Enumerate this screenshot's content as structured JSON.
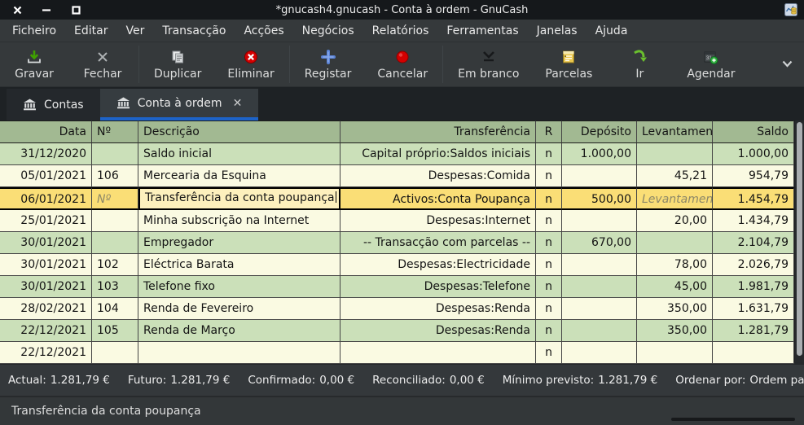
{
  "window": {
    "title": "*gnucash4.gnucash - Conta à ordem - GnuCash",
    "controls": [
      "close",
      "minimize",
      "maximize"
    ]
  },
  "menu": {
    "items": [
      "Ficheiro",
      "Editar",
      "Ver",
      "Transacção",
      "Acções",
      "Negócios",
      "Relatórios",
      "Ferramentas",
      "Janelas",
      "Ajuda"
    ]
  },
  "toolbar": {
    "groups": [
      [
        {
          "label": "Gravar",
          "icon": "save-icon"
        },
        {
          "label": "Fechar",
          "icon": "close-icon"
        }
      ],
      [
        {
          "label": "Duplicar",
          "icon": "duplicate-icon"
        },
        {
          "label": "Eliminar",
          "icon": "delete-icon"
        }
      ],
      [
        {
          "label": "Registar",
          "icon": "add-icon"
        },
        {
          "label": "Cancelar",
          "icon": "cancel-icon"
        }
      ],
      [
        {
          "label": "Em branco",
          "icon": "blank-down-icon"
        },
        {
          "label": "Parcelas",
          "icon": "splits-icon"
        },
        {
          "label": "Ir",
          "icon": "jump-icon"
        },
        {
          "label": "Agendar",
          "icon": "schedule-icon"
        }
      ]
    ]
  },
  "tabs": [
    {
      "label": "Contas",
      "icon": "bank-icon",
      "active": false,
      "closable": false
    },
    {
      "label": "Conta à ordem",
      "icon": "bank-icon",
      "active": true,
      "closable": true,
      "close_glyph": "✕"
    }
  ],
  "register": {
    "columns": [
      {
        "label": "Data",
        "align": "right"
      },
      {
        "label": "Nº",
        "align": "left"
      },
      {
        "label": "Descrição",
        "align": "left"
      },
      {
        "label": "Transferência",
        "align": "right"
      },
      {
        "label": "R",
        "align": "center"
      },
      {
        "label": "Depósito",
        "align": "right"
      },
      {
        "label": "Levantamento",
        "align": "right",
        "clipped": true
      },
      {
        "label": "Saldo",
        "align": "right"
      }
    ],
    "rows": [
      {
        "style": "green",
        "date": "31/12/2020",
        "num": "",
        "desc": "Saldo inicial",
        "transfer": "Capital próprio:Saldos iniciais",
        "r": "n",
        "deposit": "1.000,00",
        "withdrawal": "",
        "balance": "1.000,00"
      },
      {
        "style": "cream",
        "date": "05/01/2021",
        "num": "106",
        "desc": "Mercearia da Esquina",
        "transfer": "Despesas:Comida",
        "r": "n",
        "deposit": "",
        "withdrawal": "45,21",
        "balance": "954,79"
      },
      {
        "style": "edit",
        "date": "06/01/2021",
        "num": "",
        "num_placeholder": "Nº",
        "desc": "Transferência da conta poupança",
        "desc_editing": true,
        "transfer": "Activos:Conta Poupança",
        "r": "n",
        "deposit": "500,00",
        "withdrawal": "",
        "withdrawal_placeholder": "Levantamento",
        "balance": "1.454,79"
      },
      {
        "style": "cream",
        "date": "25/01/2021",
        "num": "",
        "desc": "Minha subscrição na Internet",
        "transfer": "Despesas:Internet",
        "r": "n",
        "deposit": "",
        "withdrawal": "20,00",
        "balance": "1.434,79"
      },
      {
        "style": "green",
        "date": "30/01/2021",
        "num": "",
        "desc": "Empregador",
        "transfer": "-- Transacção com parcelas --",
        "r": "n",
        "deposit": "670,00",
        "withdrawal": "",
        "balance": "2.104,79"
      },
      {
        "style": "cream",
        "date": "30/01/2021",
        "num": "102",
        "desc": "Eléctrica Barata",
        "transfer": "Despesas:Electricidade",
        "r": "n",
        "deposit": "",
        "withdrawal": "78,00",
        "balance": "2.026,79"
      },
      {
        "style": "green",
        "date": "30/01/2021",
        "num": "103",
        "desc": "Telefone fixo",
        "transfer": "Despesas:Telefone",
        "r": "n",
        "deposit": "",
        "withdrawal": "45,00",
        "balance": "1.981,79"
      },
      {
        "style": "cream",
        "date": "28/02/2021",
        "num": "104",
        "desc": "Renda de Fevereiro",
        "transfer": "Despesas:Renda",
        "r": "n",
        "deposit": "",
        "withdrawal": "350,00",
        "balance": "1.631,79"
      },
      {
        "style": "green",
        "date": "22/12/2021",
        "num": "105",
        "desc": "Renda de Março",
        "transfer": "Despesas:Renda",
        "r": "n",
        "deposit": "",
        "withdrawal": "350,00",
        "balance": "1.281,79"
      },
      {
        "style": "cream",
        "date": "22/12/2021",
        "num": "",
        "desc": "",
        "transfer": "",
        "r": "n",
        "deposit": "",
        "withdrawal": "",
        "balance": ""
      }
    ]
  },
  "summary": {
    "items": [
      {
        "label": "Actual:",
        "value": "1.281,79 €"
      },
      {
        "label": "Futuro:",
        "value": "1.281,79 €"
      },
      {
        "label": "Confirmado:",
        "value": "0,00 €"
      },
      {
        "label": "Reconciliado:",
        "value": "0,00 €"
      },
      {
        "label": "Mínimo previsto:",
        "value": "1.281,79 €"
      }
    ],
    "sort_label": "Ordenar por:",
    "sort_value": "Ordem padrão"
  },
  "statusbar": {
    "text": "Transferência da conta poupança"
  },
  "colors": {
    "accent_blue": "#1d63c8",
    "row_green": "#cbe0b9",
    "row_cream": "#fafae2",
    "row_edit_yellow": "#fade76",
    "edit_cell_yellow": "#fdf0bd",
    "header_green": "#a2b992",
    "chrome_dark": "#35393b",
    "titlebar_dark": "#15181b"
  }
}
